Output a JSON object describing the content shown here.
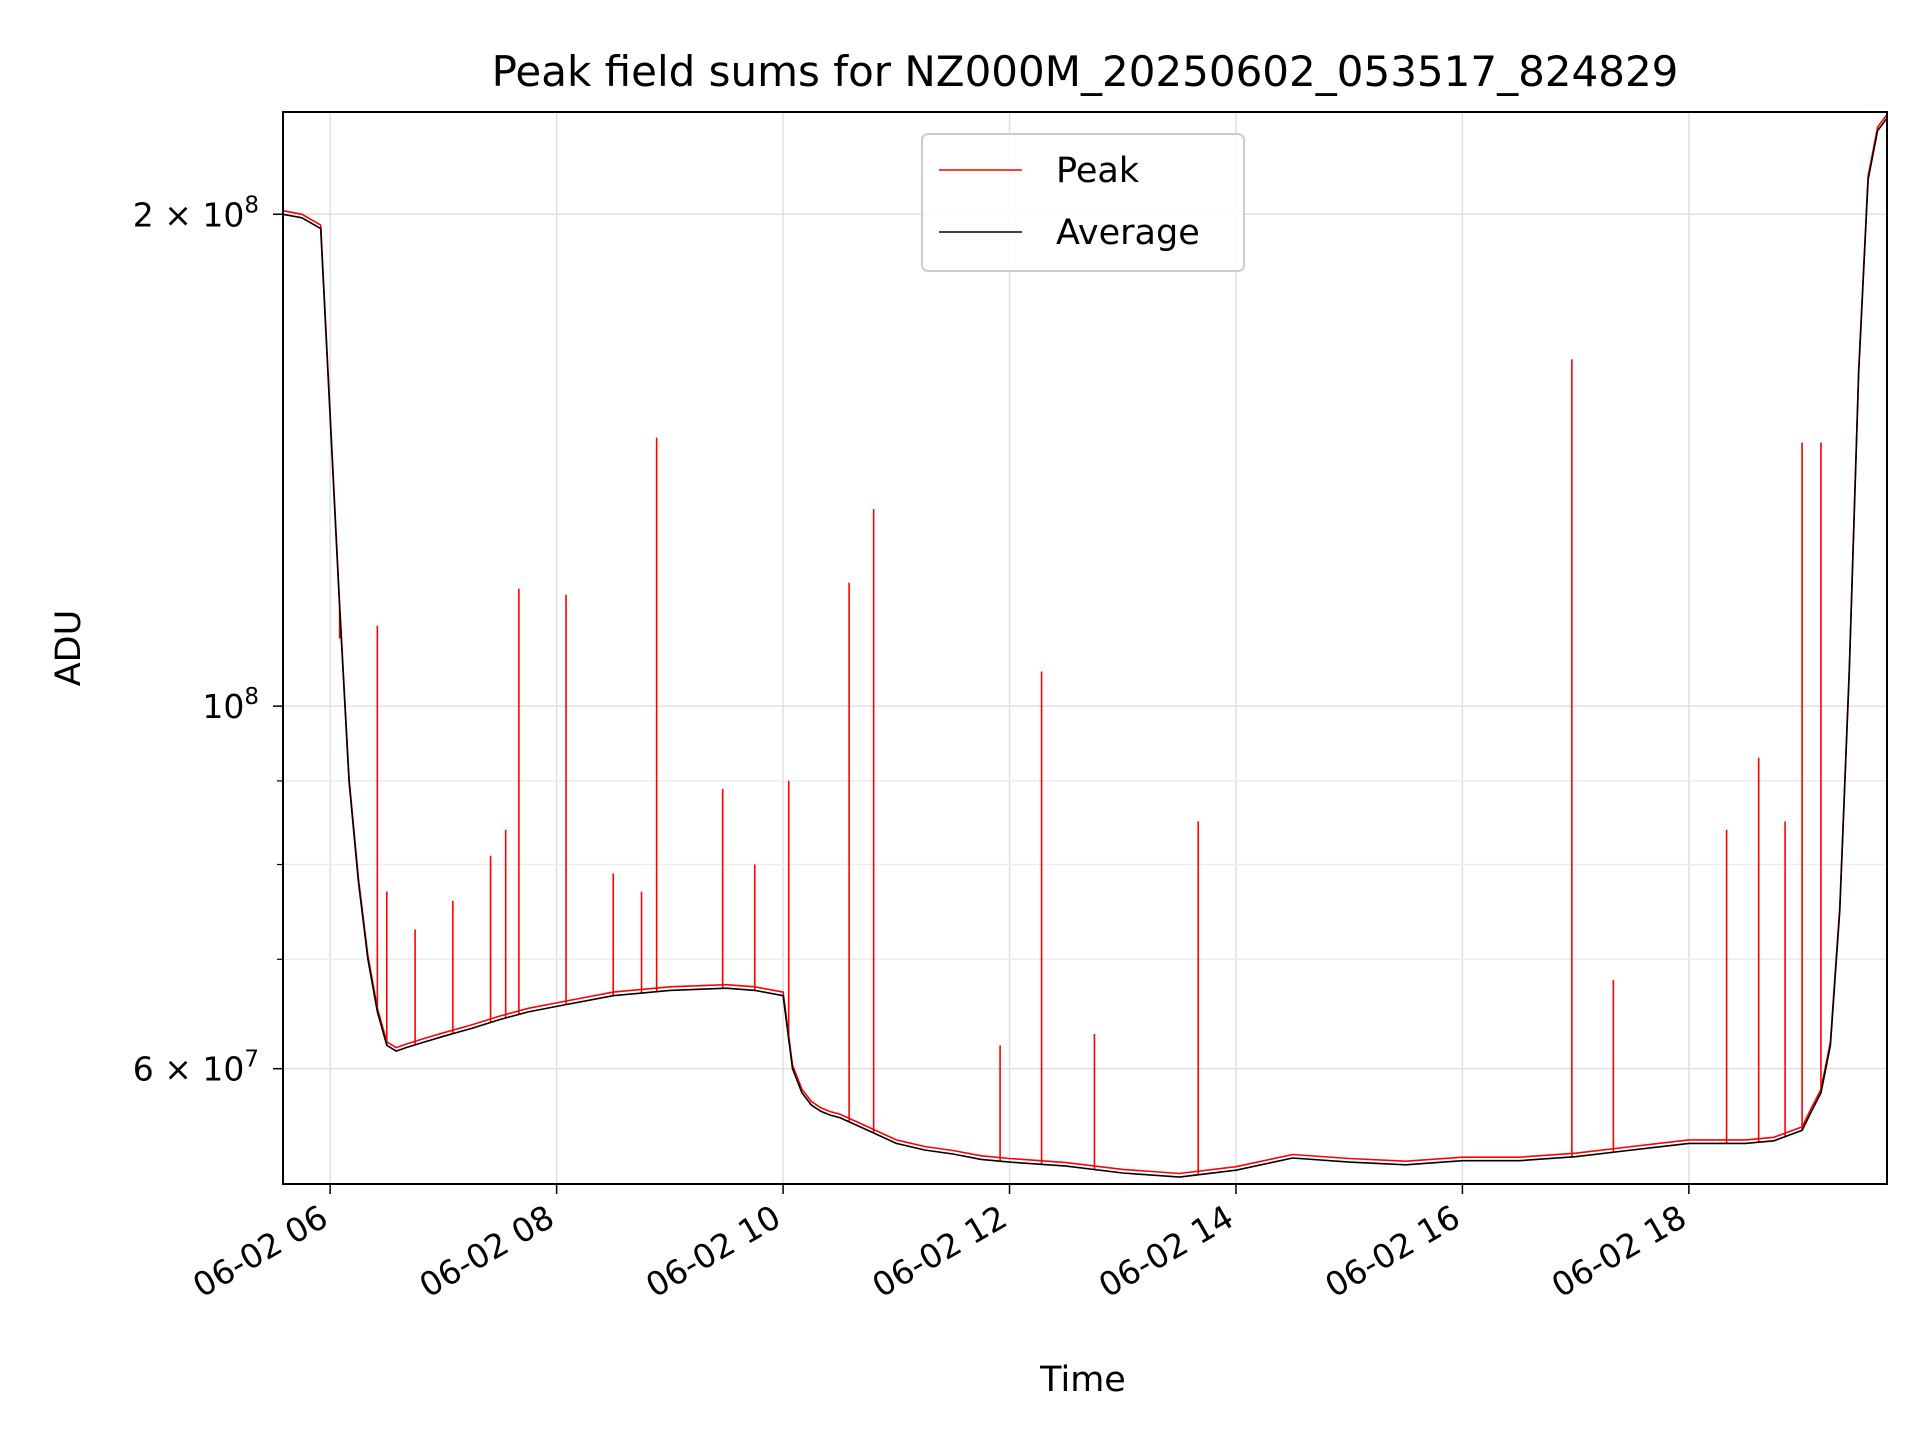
{
  "chart_data": {
    "type": "line",
    "title": "Peak field sums for NZ000M_20250602_053517_824829",
    "xlabel": "Time",
    "ylabel": "ADU",
    "yscale": "log",
    "xlim": [
      "2025-06-02 05:35",
      "2025-06-02 19:45"
    ],
    "ylim": [
      51000000,
      231000000
    ],
    "grid": true,
    "legend_position": "top-center",
    "x_ticks": [
      {
        "value": "2025-06-02 06:00",
        "label": "06-02 06"
      },
      {
        "value": "2025-06-02 08:00",
        "label": "06-02 08"
      },
      {
        "value": "2025-06-02 10:00",
        "label": "06-02 10"
      },
      {
        "value": "2025-06-02 12:00",
        "label": "06-02 12"
      },
      {
        "value": "2025-06-02 14:00",
        "label": "06-02 14"
      },
      {
        "value": "2025-06-02 16:00",
        "label": "06-02 16"
      },
      {
        "value": "2025-06-02 18:00",
        "label": "06-02 18"
      }
    ],
    "y_major_ticks": [
      {
        "value": 60000000,
        "label_base": "6 × 10",
        "label_exp": "7"
      },
      {
        "value": 100000000,
        "label_base": "10",
        "label_exp": "8"
      },
      {
        "value": 200000000,
        "label_base": "2 × 10",
        "label_exp": "8"
      }
    ],
    "y_minor_ticks": [
      70000000,
      80000000,
      90000000
    ],
    "series": [
      {
        "name": "Average",
        "color": "#000000",
        "x": [
          "2025-06-02 05:35",
          "2025-06-02 05:45",
          "2025-06-02 05:55",
          "2025-06-02 06:00",
          "2025-06-02 06:05",
          "2025-06-02 06:10",
          "2025-06-02 06:15",
          "2025-06-02 06:20",
          "2025-06-02 06:25",
          "2025-06-02 06:30",
          "2025-06-02 06:35",
          "2025-06-02 06:40",
          "2025-06-02 06:50",
          "2025-06-02 07:00",
          "2025-06-02 07:15",
          "2025-06-02 07:30",
          "2025-06-02 07:45",
          "2025-06-02 08:00",
          "2025-06-02 08:30",
          "2025-06-02 09:00",
          "2025-06-02 09:30",
          "2025-06-02 09:45",
          "2025-06-02 10:00",
          "2025-06-02 10:05",
          "2025-06-02 10:10",
          "2025-06-02 10:15",
          "2025-06-02 10:20",
          "2025-06-02 10:25",
          "2025-06-02 10:30",
          "2025-06-02 10:45",
          "2025-06-02 11:00",
          "2025-06-02 11:15",
          "2025-06-02 11:30",
          "2025-06-02 11:45",
          "2025-06-02 12:00",
          "2025-06-02 12:30",
          "2025-06-02 13:00",
          "2025-06-02 13:30",
          "2025-06-02 14:00",
          "2025-06-02 14:30",
          "2025-06-02 15:00",
          "2025-06-02 15:30",
          "2025-06-02 16:00",
          "2025-06-02 16:30",
          "2025-06-02 17:00",
          "2025-06-02 17:30",
          "2025-06-02 18:00",
          "2025-06-02 18:30",
          "2025-06-02 18:45",
          "2025-06-02 19:00",
          "2025-06-02 19:05",
          "2025-06-02 19:10",
          "2025-06-02 19:15",
          "2025-06-02 19:20",
          "2025-06-02 19:25",
          "2025-06-02 19:30",
          "2025-06-02 19:35",
          "2025-06-02 19:40",
          "2025-06-02 19:45"
        ],
        "y": [
          200000000,
          199000000,
          196000000,
          150000000,
          115000000,
          90000000,
          78000000,
          70000000,
          65000000,
          62000000,
          61500000,
          61800000,
          62300000,
          62800000,
          63500000,
          64300000,
          65000000,
          65500000,
          66500000,
          67000000,
          67200000,
          67000000,
          66500000,
          60000000,
          58000000,
          57000000,
          56500000,
          56200000,
          56000000,
          55000000,
          54000000,
          53500000,
          53200000,
          52800000,
          52600000,
          52300000,
          51800000,
          51500000,
          52000000,
          52900000,
          52600000,
          52400000,
          52700000,
          52700000,
          53000000,
          53500000,
          54000000,
          54000000,
          54200000,
          55000000,
          56500000,
          58000000,
          62000000,
          75000000,
          105000000,
          160000000,
          210000000,
          225000000,
          229000000
        ]
      },
      {
        "name": "Peak",
        "color": "#ff0000",
        "spikes": [
          {
            "x": "2025-06-02 06:05",
            "y": 110000000
          },
          {
            "x": "2025-06-02 06:25",
            "y": 112000000
          },
          {
            "x": "2025-06-02 06:30",
            "y": 77000000
          },
          {
            "x": "2025-06-02 06:45",
            "y": 73000000
          },
          {
            "x": "2025-06-02 07:05",
            "y": 76000000
          },
          {
            "x": "2025-06-02 07:25",
            "y": 81000000
          },
          {
            "x": "2025-06-02 07:33",
            "y": 84000000
          },
          {
            "x": "2025-06-02 07:40",
            "y": 118000000
          },
          {
            "x": "2025-06-02 08:05",
            "y": 117000000
          },
          {
            "x": "2025-06-02 08:30",
            "y": 79000000
          },
          {
            "x": "2025-06-02 08:45",
            "y": 77000000
          },
          {
            "x": "2025-06-02 08:53",
            "y": 146000000
          },
          {
            "x": "2025-06-02 09:28",
            "y": 89000000
          },
          {
            "x": "2025-06-02 09:45",
            "y": 80000000
          },
          {
            "x": "2025-06-02 10:03",
            "y": 90000000
          },
          {
            "x": "2025-06-02 10:35",
            "y": 119000000
          },
          {
            "x": "2025-06-02 10:48",
            "y": 132000000
          },
          {
            "x": "2025-06-02 11:55",
            "y": 62000000
          },
          {
            "x": "2025-06-02 12:17",
            "y": 105000000
          },
          {
            "x": "2025-06-02 12:45",
            "y": 63000000
          },
          {
            "x": "2025-06-02 13:40",
            "y": 85000000
          },
          {
            "x": "2025-06-02 16:58",
            "y": 163000000
          },
          {
            "x": "2025-06-02 17:20",
            "y": 68000000
          },
          {
            "x": "2025-06-02 18:20",
            "y": 84000000
          },
          {
            "x": "2025-06-02 18:37",
            "y": 93000000
          },
          {
            "x": "2025-06-02 18:51",
            "y": 85000000
          },
          {
            "x": "2025-06-02 19:00",
            "y": 145000000
          },
          {
            "x": "2025-06-02 19:10",
            "y": 145000000
          }
        ]
      }
    ]
  }
}
